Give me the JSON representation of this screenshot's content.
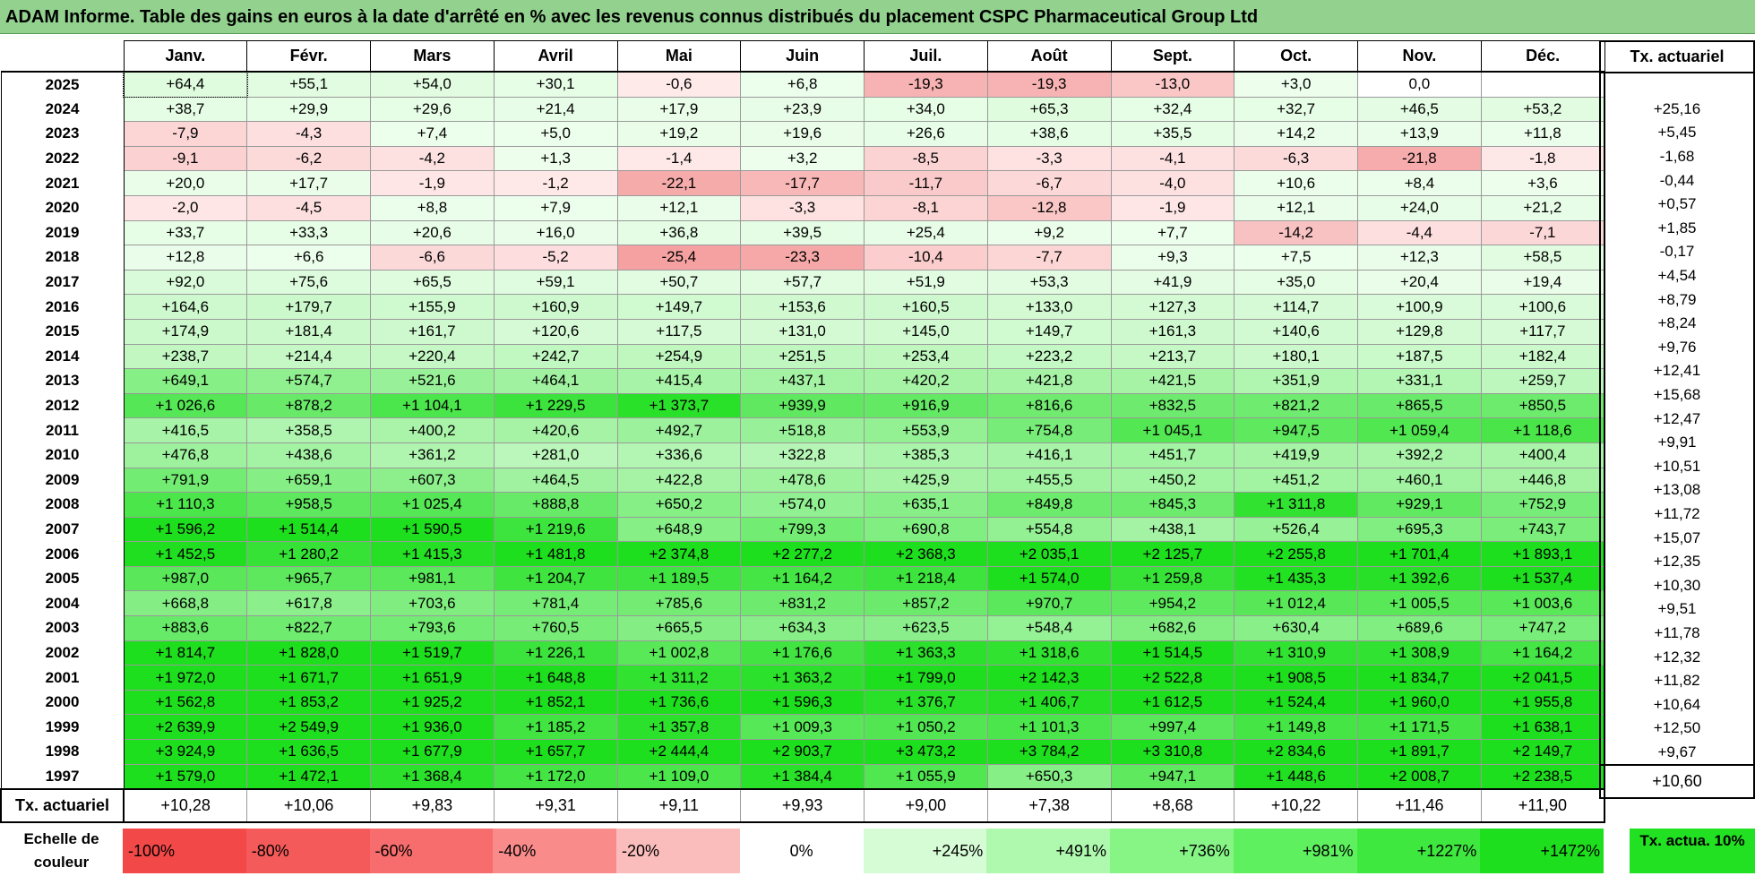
{
  "title": "ADAM Informe. Table des gains en euros à la date d'arrêté en % avec les revenus connus distribués du placement CSPC Pharmaceutical Group Ltd",
  "columns": [
    "Janv.",
    "Févr.",
    "Mars",
    "Avril",
    "Mai",
    "Juin",
    "Juil.",
    "Août",
    "Sept.",
    "Oct.",
    "Nov.",
    "Déc."
  ],
  "side_header": "Tx. actuariel",
  "rows": [
    {
      "year": "2025",
      "values": [
        "+64,4",
        "+55,1",
        "+54,0",
        "+30,1",
        "-0,6",
        "+6,8",
        "-19,3",
        "-19,3",
        "-13,0",
        "+3,0",
        "0,0",
        ""
      ],
      "rate": ""
    },
    {
      "year": "2024",
      "values": [
        "+38,7",
        "+29,9",
        "+29,6",
        "+21,4",
        "+17,9",
        "+23,9",
        "+34,0",
        "+65,3",
        "+32,4",
        "+32,7",
        "+46,5",
        "+53,2"
      ],
      "rate": "+25,16"
    },
    {
      "year": "2023",
      "values": [
        "-7,9",
        "-4,3",
        "+7,4",
        "+5,0",
        "+19,2",
        "+19,6",
        "+26,6",
        "+38,6",
        "+35,5",
        "+14,2",
        "+13,9",
        "+11,8"
      ],
      "rate": "+5,45"
    },
    {
      "year": "2022",
      "values": [
        "-9,1",
        "-6,2",
        "-4,2",
        "+1,3",
        "-1,4",
        "+3,2",
        "-8,5",
        "-3,3",
        "-4,1",
        "-6,3",
        "-21,8",
        "-1,8"
      ],
      "rate": "-1,68"
    },
    {
      "year": "2021",
      "values": [
        "+20,0",
        "+17,7",
        "-1,9",
        "-1,2",
        "-22,1",
        "-17,7",
        "-11,7",
        "-6,7",
        "-4,0",
        "+10,6",
        "+8,4",
        "+3,6"
      ],
      "rate": "-0,44"
    },
    {
      "year": "2020",
      "values": [
        "-2,0",
        "-4,5",
        "+8,8",
        "+7,9",
        "+12,1",
        "-3,3",
        "-8,1",
        "-12,8",
        "-1,9",
        "+12,1",
        "+24,0",
        "+21,2"
      ],
      "rate": "+0,57"
    },
    {
      "year": "2019",
      "values": [
        "+33,7",
        "+33,3",
        "+20,6",
        "+16,0",
        "+36,8",
        "+39,5",
        "+25,4",
        "+9,2",
        "+7,7",
        "-14,2",
        "-4,4",
        "-7,1"
      ],
      "rate": "+1,85"
    },
    {
      "year": "2018",
      "values": [
        "+12,8",
        "+6,6",
        "-6,6",
        "-5,2",
        "-25,4",
        "-23,3",
        "-10,4",
        "-7,7",
        "+9,3",
        "+7,5",
        "+12,3",
        "+58,5"
      ],
      "rate": "-0,17"
    },
    {
      "year": "2017",
      "values": [
        "+92,0",
        "+75,6",
        "+65,5",
        "+59,1",
        "+50,7",
        "+57,7",
        "+51,9",
        "+53,3",
        "+41,9",
        "+35,0",
        "+20,4",
        "+19,4"
      ],
      "rate": "+4,54"
    },
    {
      "year": "2016",
      "values": [
        "+164,6",
        "+179,7",
        "+155,9",
        "+160,9",
        "+149,7",
        "+153,6",
        "+160,5",
        "+133,0",
        "+127,3",
        "+114,7",
        "+100,9",
        "+100,6"
      ],
      "rate": "+8,79"
    },
    {
      "year": "2015",
      "values": [
        "+174,9",
        "+181,4",
        "+161,7",
        "+120,6",
        "+117,5",
        "+131,0",
        "+145,0",
        "+149,7",
        "+161,3",
        "+140,6",
        "+129,8",
        "+117,7"
      ],
      "rate": "+8,24"
    },
    {
      "year": "2014",
      "values": [
        "+238,7",
        "+214,4",
        "+220,4",
        "+242,7",
        "+254,9",
        "+251,5",
        "+253,4",
        "+223,2",
        "+213,7",
        "+180,1",
        "+187,5",
        "+182,4"
      ],
      "rate": "+9,76"
    },
    {
      "year": "2013",
      "values": [
        "+649,1",
        "+574,7",
        "+521,6",
        "+464,1",
        "+415,4",
        "+437,1",
        "+420,2",
        "+421,8",
        "+421,5",
        "+351,9",
        "+331,1",
        "+259,7"
      ],
      "rate": "+12,41"
    },
    {
      "year": "2012",
      "values": [
        "+1 026,6",
        "+878,2",
        "+1 104,1",
        "+1 229,5",
        "+1 373,7",
        "+939,9",
        "+916,9",
        "+816,6",
        "+832,5",
        "+821,2",
        "+865,5",
        "+850,5"
      ],
      "rate": "+15,68"
    },
    {
      "year": "2011",
      "values": [
        "+416,5",
        "+358,5",
        "+400,2",
        "+420,6",
        "+492,7",
        "+518,8",
        "+553,9",
        "+754,8",
        "+1 045,1",
        "+947,5",
        "+1 059,4",
        "+1 118,6"
      ],
      "rate": "+12,47"
    },
    {
      "year": "2010",
      "values": [
        "+476,8",
        "+438,6",
        "+361,2",
        "+281,0",
        "+336,6",
        "+322,8",
        "+385,3",
        "+416,1",
        "+451,7",
        "+419,9",
        "+392,2",
        "+400,4"
      ],
      "rate": "+9,91"
    },
    {
      "year": "2009",
      "values": [
        "+791,9",
        "+659,1",
        "+607,3",
        "+464,5",
        "+422,8",
        "+478,6",
        "+425,9",
        "+455,5",
        "+450,2",
        "+451,2",
        "+460,1",
        "+446,8"
      ],
      "rate": "+10,51"
    },
    {
      "year": "2008",
      "values": [
        "+1 110,3",
        "+958,5",
        "+1 025,4",
        "+888,8",
        "+650,2",
        "+574,0",
        "+635,1",
        "+849,8",
        "+845,3",
        "+1 311,8",
        "+929,1",
        "+752,9"
      ],
      "rate": "+13,08"
    },
    {
      "year": "2007",
      "values": [
        "+1 596,2",
        "+1 514,4",
        "+1 590,5",
        "+1 219,6",
        "+648,9",
        "+799,3",
        "+690,8",
        "+554,8",
        "+438,1",
        "+526,4",
        "+695,3",
        "+743,7"
      ],
      "rate": "+11,72"
    },
    {
      "year": "2006",
      "values": [
        "+1 452,5",
        "+1 280,2",
        "+1 415,3",
        "+1 481,8",
        "+2 374,8",
        "+2 277,2",
        "+2 368,3",
        "+2 035,1",
        "+2 125,7",
        "+2 255,8",
        "+1 701,4",
        "+1 893,1"
      ],
      "rate": "+15,07"
    },
    {
      "year": "2005",
      "values": [
        "+987,0",
        "+965,7",
        "+981,1",
        "+1 204,7",
        "+1 189,5",
        "+1 164,2",
        "+1 218,4",
        "+1 574,0",
        "+1 259,8",
        "+1 435,3",
        "+1 392,6",
        "+1 537,4"
      ],
      "rate": "+12,35"
    },
    {
      "year": "2004",
      "values": [
        "+668,8",
        "+617,8",
        "+703,6",
        "+781,4",
        "+785,6",
        "+831,2",
        "+857,2",
        "+970,7",
        "+954,2",
        "+1 012,4",
        "+1 005,5",
        "+1 003,6"
      ],
      "rate": "+10,30"
    },
    {
      "year": "2003",
      "values": [
        "+883,6",
        "+822,7",
        "+793,6",
        "+760,5",
        "+665,5",
        "+634,3",
        "+623,5",
        "+548,4",
        "+682,6",
        "+630,4",
        "+689,6",
        "+747,2"
      ],
      "rate": "+9,51"
    },
    {
      "year": "2002",
      "values": [
        "+1 814,7",
        "+1 828,0",
        "+1 519,7",
        "+1 226,1",
        "+1 002,8",
        "+1 176,6",
        "+1 363,3",
        "+1 318,6",
        "+1 514,5",
        "+1 310,9",
        "+1 308,9",
        "+1 164,2"
      ],
      "rate": "+11,78"
    },
    {
      "year": "2001",
      "values": [
        "+1 972,0",
        "+1 671,7",
        "+1 651,9",
        "+1 648,8",
        "+1 311,2",
        "+1 363,2",
        "+1 799,0",
        "+2 142,3",
        "+2 522,8",
        "+1 908,5",
        "+1 834,7",
        "+2 041,5"
      ],
      "rate": "+12,32"
    },
    {
      "year": "2000",
      "values": [
        "+1 562,8",
        "+1 853,2",
        "+1 925,2",
        "+1 852,1",
        "+1 736,6",
        "+1 596,3",
        "+1 376,7",
        "+1 406,7",
        "+1 612,5",
        "+1 524,4",
        "+1 960,0",
        "+1 955,8"
      ],
      "rate": "+11,82"
    },
    {
      "year": "1999",
      "values": [
        "+2 639,9",
        "+2 549,9",
        "+1 936,0",
        "+1 185,2",
        "+1 357,8",
        "+1 009,3",
        "+1 050,2",
        "+1 101,3",
        "+997,4",
        "+1 149,8",
        "+1 171,5",
        "+1 638,1"
      ],
      "rate": "+10,64"
    },
    {
      "year": "1998",
      "values": [
        "+3 924,9",
        "+1 636,5",
        "+1 677,9",
        "+1 657,7",
        "+2 444,4",
        "+2 903,7",
        "+3 473,2",
        "+3 784,2",
        "+3 310,8",
        "+2 834,6",
        "+1 891,7",
        "+2 149,7"
      ],
      "rate": "+12,50"
    },
    {
      "year": "1997",
      "values": [
        "+1 579,0",
        "+1 472,1",
        "+1 368,4",
        "+1 172,0",
        "+1 109,0",
        "+1 384,4",
        "+1 055,9",
        "+650,3",
        "+947,1",
        "+1 448,6",
        "+2 008,7",
        "+2 238,5"
      ],
      "rate": "+9,67"
    }
  ],
  "footer": {
    "label": "Tx. actuariel",
    "values": [
      "+10,28",
      "+10,06",
      "+9,83",
      "+9,31",
      "+9,11",
      "+9,93",
      "+9,00",
      "+7,38",
      "+8,68",
      "+10,22",
      "+11,46",
      "+11,90"
    ],
    "total": "+10,60"
  },
  "scale": {
    "label": "Echelle de couleur",
    "items": [
      {
        "label": "-100%",
        "color": "#f34848"
      },
      {
        "label": "-80%",
        "color": "#f55a5a"
      },
      {
        "label": "-60%",
        "color": "#f76c6c"
      },
      {
        "label": "-40%",
        "color": "#f98b8b"
      },
      {
        "label": "-20%",
        "color": "#fbbcbc"
      },
      {
        "label": "0%",
        "color": "#ffffff"
      },
      {
        "label": "+245%",
        "color": "#d6fcd6"
      },
      {
        "label": "+491%",
        "color": "#aef9ae"
      },
      {
        "label": "+736%",
        "color": "#86f586"
      },
      {
        "label": "+981%",
        "color": "#5ef05e"
      },
      {
        "label": "+1227%",
        "color": "#3ee83e"
      },
      {
        "label": "+1472%",
        "color": "#1edf1e"
      }
    ],
    "actual_label": "Tx. actua. 10%",
    "actual_color": "#22e022"
  }
}
